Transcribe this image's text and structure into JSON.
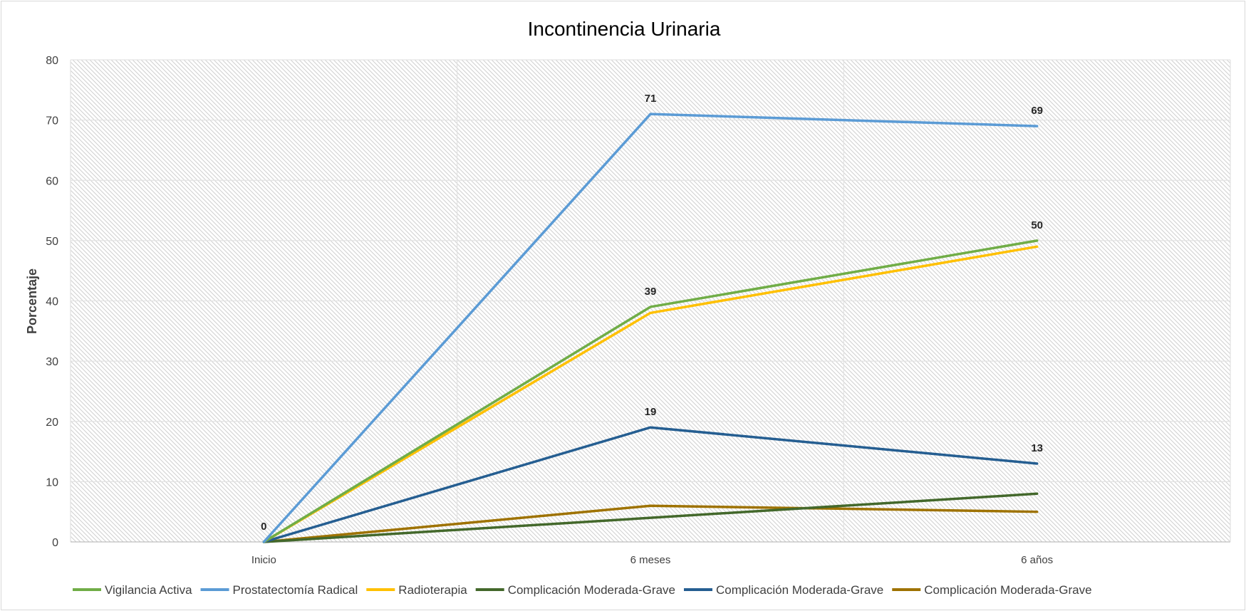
{
  "chart_data": {
    "type": "line",
    "title": "Incontinencia Urinaria",
    "xlabel": "",
    "ylabel": "Porcentaje",
    "categories": [
      "Inicio",
      "6 meses",
      "6 años"
    ],
    "ylim": [
      0,
      80
    ],
    "yticks": [
      0,
      10,
      20,
      30,
      40,
      50,
      60,
      70,
      80
    ],
    "grid": true,
    "legend_position": "bottom",
    "series": [
      {
        "name": "Vigilancia Activa",
        "values": [
          0,
          39,
          50
        ],
        "color": "#70ad47",
        "labels": [
          false,
          true,
          true
        ]
      },
      {
        "name": "Prostatectomía Radical",
        "values": [
          0,
          71,
          69
        ],
        "color": "#5b9bd5",
        "labels": [
          false,
          true,
          true
        ]
      },
      {
        "name": "Radioterapia",
        "values": [
          0,
          38,
          49
        ],
        "color": "#ffc000",
        "labels": [
          false,
          false,
          false
        ]
      },
      {
        "name": "Complicación Moderada-Grave",
        "values": [
          0,
          4,
          8
        ],
        "color": "#43682b",
        "labels": [
          true,
          false,
          false
        ]
      },
      {
        "name": "Complicación Moderada-Grave",
        "values": [
          0,
          19,
          13
        ],
        "color": "#255e91",
        "labels": [
          false,
          true,
          true
        ]
      },
      {
        "name": "Complicación Moderada-Grave",
        "values": [
          0,
          6,
          5
        ],
        "color": "#9e7200",
        "labels": [
          false,
          false,
          false
        ]
      }
    ]
  }
}
